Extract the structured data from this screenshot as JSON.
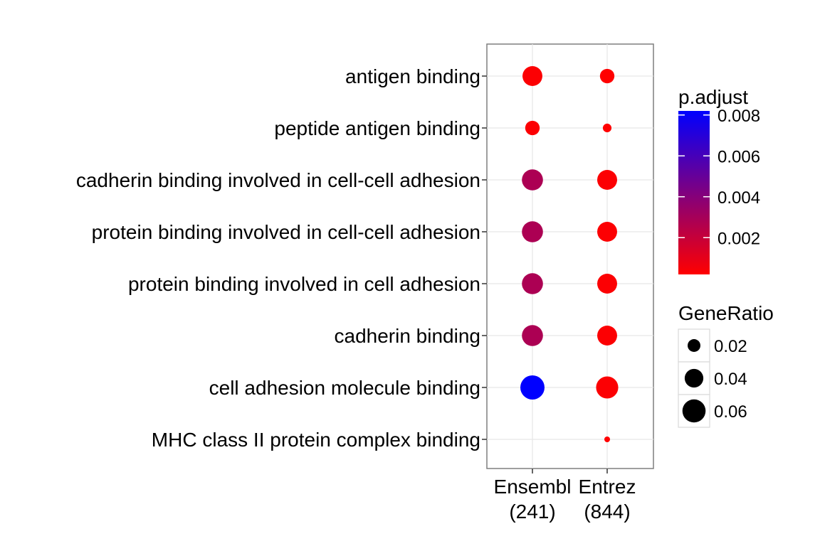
{
  "chart_data": {
    "type": "scatter",
    "title": "",
    "xlabel": "",
    "ylabel": "",
    "grid": true,
    "categories": [
      "antigen binding",
      "peptide antigen binding",
      "cadherin binding involved in cell-cell adhesion",
      "protein binding involved in cell-cell adhesion",
      "protein binding involved in cell adhesion",
      "cadherin binding",
      "cell adhesion molecule binding",
      "MHC class II protein complex binding"
    ],
    "groups": [
      {
        "line1": "Ensembl",
        "line2": "(241)"
      },
      {
        "line1": "Entrez",
        "line2": "(844)"
      }
    ],
    "points": [
      {
        "group": 0,
        "term": 0,
        "gene_ratio": 0.045,
        "p_adjust": 0.0003
      },
      {
        "group": 0,
        "term": 1,
        "gene_ratio": 0.025,
        "p_adjust": 0.0003
      },
      {
        "group": 0,
        "term": 2,
        "gene_ratio": 0.05,
        "p_adjust": 0.0028
      },
      {
        "group": 0,
        "term": 3,
        "gene_ratio": 0.05,
        "p_adjust": 0.0028
      },
      {
        "group": 0,
        "term": 4,
        "gene_ratio": 0.05,
        "p_adjust": 0.0028
      },
      {
        "group": 0,
        "term": 5,
        "gene_ratio": 0.05,
        "p_adjust": 0.0028
      },
      {
        "group": 0,
        "term": 6,
        "gene_ratio": 0.065,
        "p_adjust": 0.0082
      },
      {
        "group": 1,
        "term": 0,
        "gene_ratio": 0.025,
        "p_adjust": 0.0001
      },
      {
        "group": 1,
        "term": 1,
        "gene_ratio": 0.01,
        "p_adjust": 0.0001
      },
      {
        "group": 1,
        "term": 2,
        "gene_ratio": 0.045,
        "p_adjust": 0.0003
      },
      {
        "group": 1,
        "term": 3,
        "gene_ratio": 0.045,
        "p_adjust": 0.0003
      },
      {
        "group": 1,
        "term": 4,
        "gene_ratio": 0.045,
        "p_adjust": 0.0003
      },
      {
        "group": 1,
        "term": 5,
        "gene_ratio": 0.045,
        "p_adjust": 0.0003
      },
      {
        "group": 1,
        "term": 6,
        "gene_ratio": 0.055,
        "p_adjust": 0.0003
      },
      {
        "group": 1,
        "term": 7,
        "gene_ratio": 0.005,
        "p_adjust": 0.0001
      }
    ],
    "legend": {
      "color": {
        "title": "p.adjust",
        "ticks": [
          0.002,
          0.004,
          0.006,
          0.008
        ],
        "tick_labels": [
          "0.002",
          "0.004",
          "0.006",
          "0.008"
        ],
        "range": [
          0.0002,
          0.0082
        ],
        "low_color": "#ff0000",
        "high_color": "#0000ff"
      },
      "size": {
        "title": "GeneRatio",
        "values": [
          0.02,
          0.04,
          0.06
        ],
        "labels": [
          "0.02",
          "0.04",
          "0.06"
        ]
      },
      "placement": "right"
    }
  }
}
